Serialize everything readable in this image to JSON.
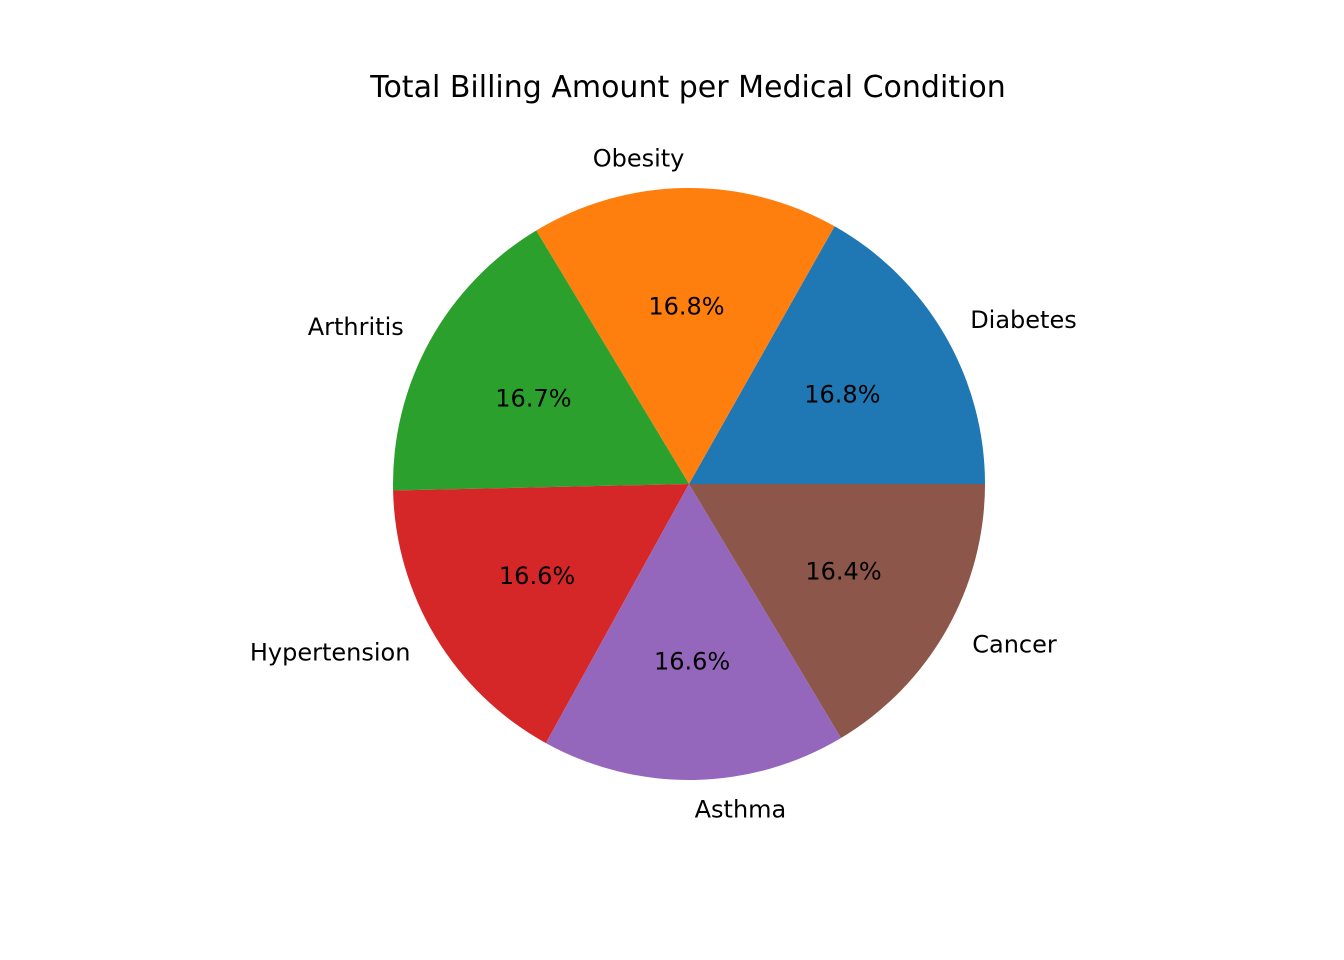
{
  "chart_data": {
    "type": "pie",
    "title": "Total Billing Amount per Medical Condition",
    "categories": [
      "Diabetes",
      "Obesity",
      "Arthritis",
      "Hypertension",
      "Asthma",
      "Cancer"
    ],
    "values": [
      16.8,
      16.8,
      16.7,
      16.6,
      16.6,
      16.4
    ],
    "percent_labels": [
      "16.8%",
      "16.8%",
      "16.7%",
      "16.6%",
      "16.6%",
      "16.4%"
    ],
    "colors": [
      "#1f77b4",
      "#ff7f0e",
      "#2ca02c",
      "#d62728",
      "#9467bd",
      "#8c564b"
    ],
    "start_angle_deg": 0,
    "direction": "counterclockwise",
    "legend": "none"
  }
}
